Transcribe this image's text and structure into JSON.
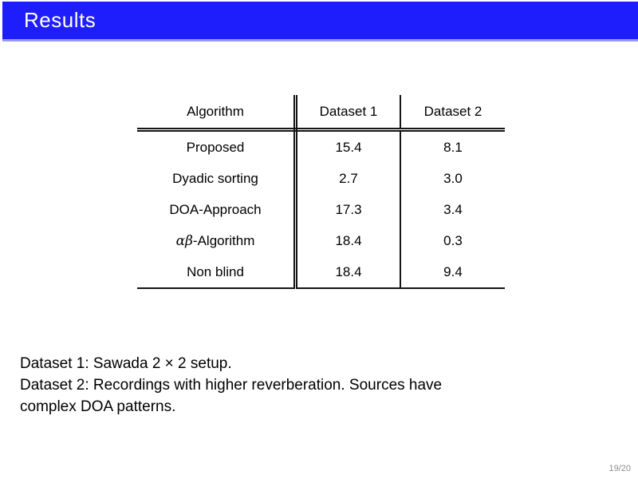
{
  "slide": {
    "title": "Results",
    "page_indicator": "19/20"
  },
  "table": {
    "columns": [
      "Algorithm",
      "Dataset 1",
      "Dataset 2"
    ],
    "rows": [
      {
        "math": "",
        "label": "Proposed",
        "d1": "15.4",
        "d2": "8.1"
      },
      {
        "math": "",
        "label": "Dyadic sorting",
        "d1": "2.7",
        "d2": "3.0"
      },
      {
        "math": "",
        "label": "DOA-Approach",
        "d1": "17.3",
        "d2": "3.4"
      },
      {
        "math": "αβ",
        "label": "-Algorithm",
        "d1": "18.4",
        "d2": "0.3"
      },
      {
        "math": "",
        "label": "Non blind",
        "d1": "18.4",
        "d2": "9.4"
      }
    ]
  },
  "notes": {
    "line1": "Dataset 1: Sawada 2 × 2 setup.",
    "line2": "Dataset 2: Recordings with higher reverberation. Sources have",
    "line3": "complex DOA patterns."
  },
  "colors": {
    "header_blue": "#1e1efc",
    "header_edge_blue": "#9a9ade",
    "page_number_gray": "#8c8c8c"
  }
}
